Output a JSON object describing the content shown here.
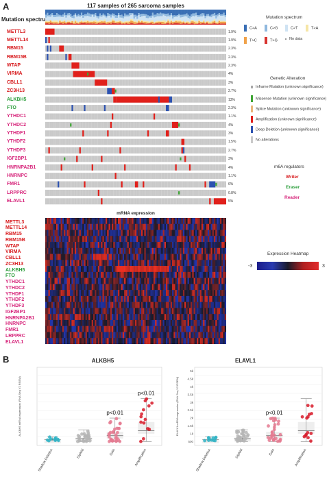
{
  "panelA": {
    "letter": "A",
    "title": "117 samples of 265 sarcoma samples",
    "mutation_spectrum_label": "Mutation spectrum",
    "mrna_title": "mRNA expression",
    "genes": [
      {
        "name": "METTL3",
        "pct": "1.9%",
        "role": "writer"
      },
      {
        "name": "METTL14",
        "pct": "1.9%",
        "role": "writer"
      },
      {
        "name": "RBM15",
        "pct": "2.3%",
        "role": "writer"
      },
      {
        "name": "RBM15B",
        "pct": "2.3%",
        "role": "writer"
      },
      {
        "name": "WTAP",
        "pct": "2.3%",
        "role": "writer"
      },
      {
        "name": "VIRMA",
        "pct": "4%",
        "role": "writer"
      },
      {
        "name": "CBLL1",
        "pct": "3%",
        "role": "writer"
      },
      {
        "name": "ZC3H13",
        "pct": "2.7%",
        "role": "writer"
      },
      {
        "name": "ALKBH5",
        "pct": "13%",
        "role": "eraser"
      },
      {
        "name": "FTO",
        "pct": "2.3%",
        "role": "eraser"
      },
      {
        "name": "YTHDC1",
        "pct": "1.1%",
        "role": "reader"
      },
      {
        "name": "YTHDC2",
        "pct": "4%",
        "role": "reader"
      },
      {
        "name": "YTHDF1",
        "pct": "3%",
        "role": "reader"
      },
      {
        "name": "YTHDF2",
        "pct": "1.5%",
        "role": "reader"
      },
      {
        "name": "YTHDF3",
        "pct": "2.7%",
        "role": "reader"
      },
      {
        "name": "IGF2BP1",
        "pct": "3%",
        "role": "reader"
      },
      {
        "name": "HNRNPA2B1",
        "pct": "4%",
        "role": "reader"
      },
      {
        "name": "HNRNPC",
        "pct": "1.1%",
        "role": "reader"
      },
      {
        "name": "FMR1",
        "pct": "6%",
        "role": "reader"
      },
      {
        "name": "LRPPRC",
        "pct": "0.8%",
        "role": "reader"
      },
      {
        "name": "ELAVL1",
        "pct": "5%",
        "role": "reader"
      }
    ],
    "legend": {
      "mutation_spectrum_title": "Mutation spectrum",
      "spectrum": [
        {
          "label": "C>A",
          "color": "#3a6fb5"
        },
        {
          "label": "C>G",
          "color": "#8fb8de"
        },
        {
          "label": "C>T",
          "color": "#cfe3f3"
        },
        {
          "label": "T>A",
          "color": "#f6e6a6"
        },
        {
          "label": "T>C",
          "color": "#f0a24a"
        },
        {
          "label": "T>G",
          "color": "#d7332f"
        },
        {
          "label": "No data",
          "color": "#999999"
        }
      ],
      "genetic_alteration_title": "Genetic Alteration",
      "alterations": [
        {
          "label": "Inframe Mutation (unknown significance)",
          "color": "#a7a7a7"
        },
        {
          "label": "Missense Mutation (unknown significance)",
          "color": "#3fa535"
        },
        {
          "label": "Splice Mutation (unknown significance)",
          "color": "#e9b57a"
        },
        {
          "label": "Amplification (unknown significance)",
          "color": "#e0201b"
        },
        {
          "label": "Deep Deletion (unknown significance)",
          "color": "#2c52b0"
        },
        {
          "label": "No alterations",
          "color": "#c9c9c9"
        }
      ],
      "m6a_title": "m6A regulators",
      "writer": "Writer",
      "eraser": "Eraser",
      "reader": "Reader",
      "heatmap_title": "Expression Heatmap",
      "heatmap_min": "-3",
      "heatmap_max": "3"
    },
    "colors": {
      "writer": "#d7191c",
      "eraser": "#2a9d3a",
      "reader": "#d6247a"
    }
  },
  "panelB": {
    "letter": "B",
    "chart_data": [
      {
        "type": "scatter",
        "title": "ALKBH5",
        "ylabel": "ALKBH5 mRNA expression (RNA Seq V2 RSEM)",
        "categories": [
          "Shallow Deletion",
          "Diploid",
          "Gain",
          "Amplification"
        ],
        "annotations": [
          {
            "category": "Gain",
            "text": "p<0.01"
          },
          {
            "category": "Amplification",
            "text": "p<0.01"
          }
        ],
        "medians": [
          3,
          5,
          6,
          8
        ],
        "ticks": []
      },
      {
        "type": "scatter",
        "title": "ELAVL1",
        "ylabel": "ELAVL1 mRNA expression (RNA Seq V2 RSEM)",
        "categories": [
          "Shallow Deletion",
          "Diploid",
          "Gain",
          "Amplification"
        ],
        "annotations": [
          {
            "category": "Gain",
            "text": "p<0.01"
          }
        ],
        "medians": [
          2100,
          2100,
          2500,
          2500
        ],
        "ticks": [
          "500",
          "1k",
          "1.5k",
          "2k",
          "2.5k",
          "3k",
          "3.5k",
          "4k",
          "4.5k",
          "5k"
        ]
      }
    ]
  }
}
